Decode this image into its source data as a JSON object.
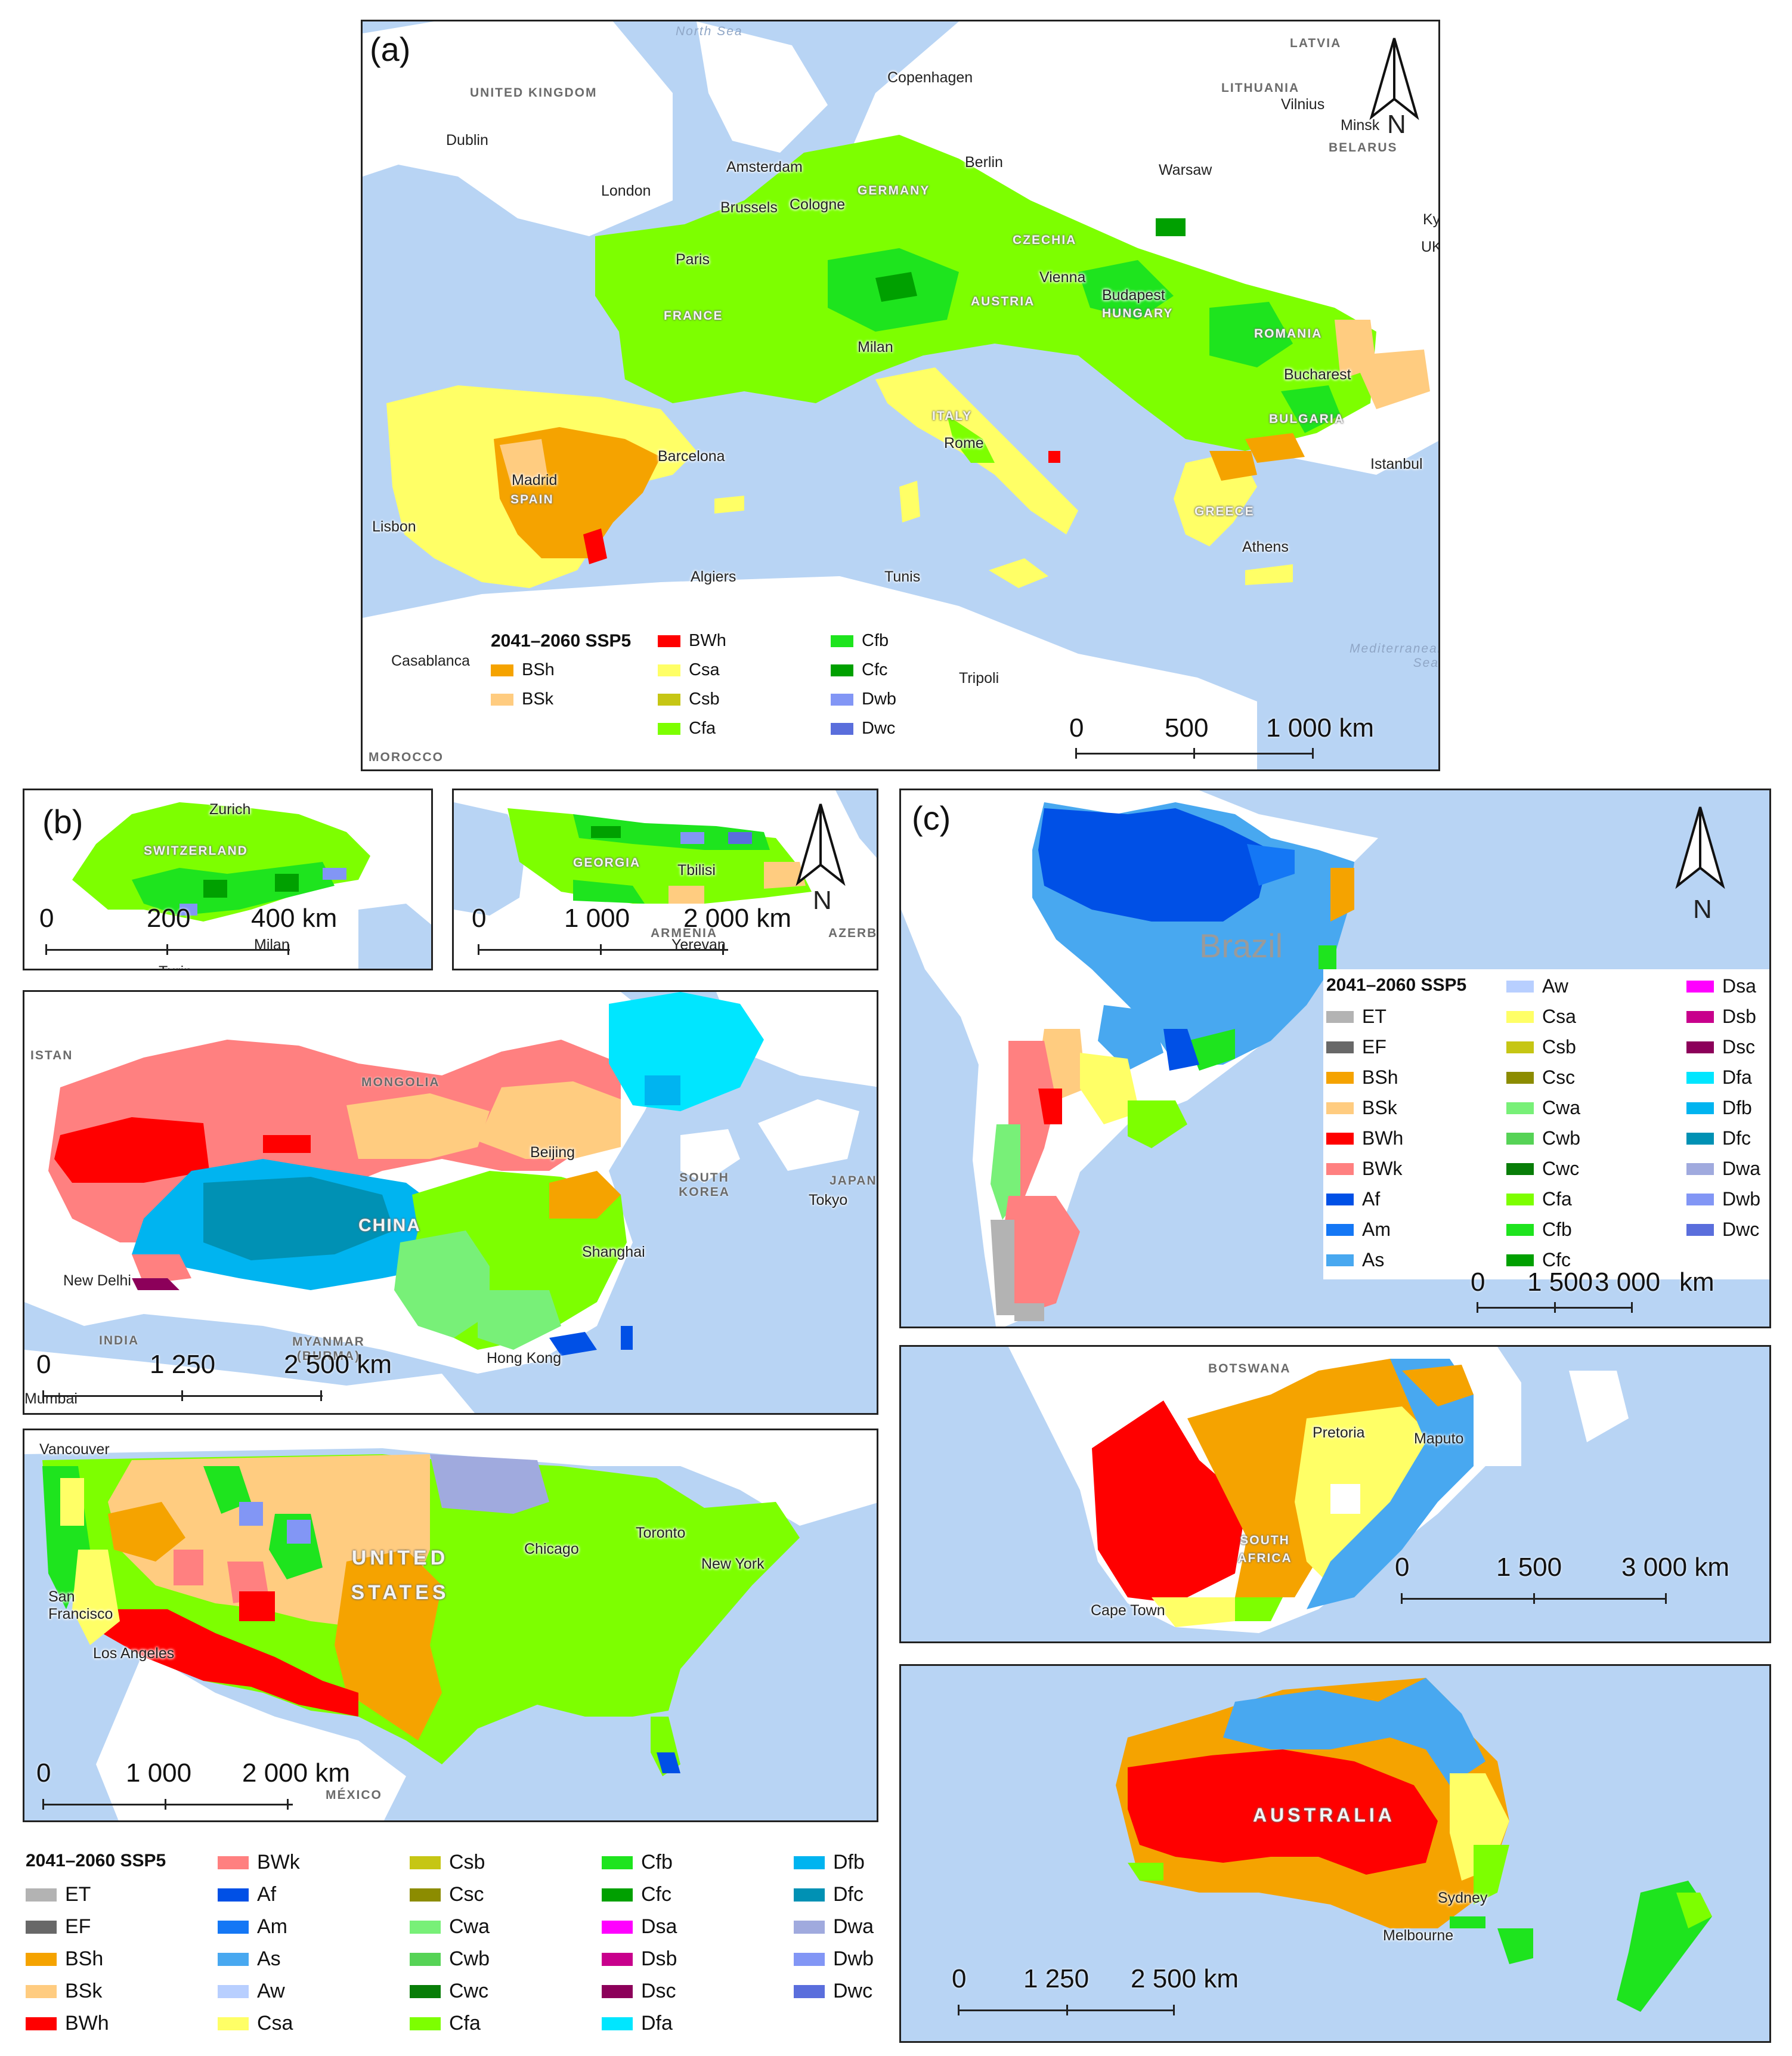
{
  "colors": {
    "ET": "#b3b3b3",
    "EF": "#686868",
    "BSh": "#f5a300",
    "BSk": "#ffcc80",
    "BWh": "#ff0000",
    "BWk": "#ff8080",
    "Af": "#0050e6",
    "Am": "#1477f5",
    "As": "#48a8f0",
    "Aw": "#b8cfff",
    "Csa": "#ffff66",
    "Csb": "#c6c614",
    "Csc": "#8c8c00",
    "Cwa": "#78f078",
    "Cwb": "#56d356",
    "Cwc": "#087d08",
    "Cfa": "#7dff00",
    "Cfb": "#1ee41e",
    "Cfc": "#00a000",
    "Dsa": "#ff00ff",
    "Dsb": "#c8008c",
    "Dsc": "#8c005a",
    "Dfa": "#00e6ff",
    "Dfb": "#00b4f0",
    "Dfc": "#0091b4",
    "Dwa": "#a0aade",
    "Dwb": "#8296f5",
    "Dwc": "#5a6edc",
    "water": "#b8d4f4",
    "land": "#ffffff"
  },
  "panel_a": {
    "label": "(a)",
    "places": [
      "North Sea",
      "LATVIA",
      "UNITED KINGDOM",
      "Copenhagen",
      "LITHUANIA",
      "Vilnius",
      "Minsk",
      "BELARUS",
      "Dublin",
      "Amsterdam",
      "Berlin",
      "London",
      "Warsaw",
      "Brussels",
      "Cologne",
      "GERMANY",
      "CZECHIA",
      "Paris",
      "FRANCE",
      "Vienna",
      "AUSTRIA",
      "Budapest",
      "HUNGARY",
      "ROMANIA",
      "Milan",
      "Bucharest",
      "ITALY",
      "BULGARIA",
      "Barcelona",
      "Rome",
      "Istanbul",
      "Madrid",
      "SPAIN",
      "GREECE",
      "Lisbon",
      "Athens",
      "Algiers",
      "Tunis",
      "Casablanca",
      "Tripoli",
      "Mediterranean Sea",
      "MOROCCO",
      "Ky",
      "UK"
    ],
    "north": "N",
    "scale": [
      "0",
      "500",
      "1 000 km"
    ],
    "legend_title": "2041–2060 SSP5",
    "legend": [
      "BSh",
      "BSk",
      "BWh",
      "Csa",
      "Csb",
      "Cfa",
      "Cfb",
      "Cfc",
      "Dwb",
      "Dwc"
    ]
  },
  "panel_b": {
    "label": "(b)",
    "swiss": {
      "places": [
        "Zurich",
        "SWITZERLAND",
        "Milan",
        "Turin"
      ],
      "scale": [
        "0",
        "200",
        "400 km"
      ]
    },
    "georgia": {
      "places": [
        "GEORGIA",
        "Tbilisi",
        "ARMENIA",
        "Yerevan",
        "AZERBA"
      ],
      "scale": [
        "0",
        "1 000",
        "2 000 km"
      ],
      "north": "N"
    },
    "china": {
      "places": [
        "ISTAN",
        "MONGOLIA",
        "Beijing",
        "SOUTH KOREA",
        "JAPAN",
        "Tokyo",
        "CHINA",
        "Shanghai",
        "New Delhi",
        "INDIA",
        "MYANMAR (BURMA)",
        "Hong Kong",
        "Mumbai"
      ],
      "scale": [
        "0",
        "1 250",
        "2 500 km"
      ]
    },
    "usa": {
      "places": [
        "Vancouver",
        "Toronto",
        "Chicago",
        "New York",
        "UNITED STATES",
        "San Francisco",
        "Los Angeles",
        "MÉXICO"
      ],
      "scale": [
        "0",
        "1 000",
        "2 000 km"
      ]
    },
    "legend_title": "2041–2060 SSP5",
    "legend": [
      "ET",
      "EF",
      "BSh",
      "BSk",
      "BWh",
      "BWk",
      "Af",
      "Am",
      "As",
      "Aw",
      "Csa",
      "Csb",
      "Csc",
      "Cwa",
      "Cwb",
      "Cwc",
      "Cfa",
      "Cfb",
      "Cfc",
      "Dsa",
      "Dsb",
      "Dsc",
      "Dfa",
      "Dfb",
      "Dfc",
      "Dwa",
      "Dwb",
      "Dwc"
    ]
  },
  "panel_c": {
    "label": "(c)",
    "south_america": {
      "places": [
        "Brazil"
      ],
      "scale": [
        "0",
        "1 500",
        "3 000",
        "km"
      ],
      "north": "N"
    },
    "legend_title": "2041–2060 SSP5",
    "legend": [
      "ET",
      "EF",
      "BSh",
      "BSk",
      "BWh",
      "BWk",
      "Af",
      "Am",
      "As",
      "Aw",
      "Csa",
      "Csb",
      "Csc",
      "Cwa",
      "Cwb",
      "Cwc",
      "Cfa",
      "Cfb",
      "Cfc",
      "Dsa",
      "Dsb",
      "Dsc",
      "Dfa",
      "Dfb",
      "Dfc",
      "Dwa",
      "Dwb",
      "Dwc"
    ],
    "south_africa": {
      "places": [
        "BOTSWANA",
        "Pretoria",
        "Maputo",
        "SOUTH AFRICA",
        "Cape Town"
      ],
      "scale": [
        "0",
        "1 500",
        "3 000 km"
      ]
    },
    "australia": {
      "places": [
        "AUSTRALIA",
        "Sydney",
        "Melbourne"
      ],
      "scale": [
        "0",
        "1 250",
        "2 500 km"
      ]
    }
  }
}
